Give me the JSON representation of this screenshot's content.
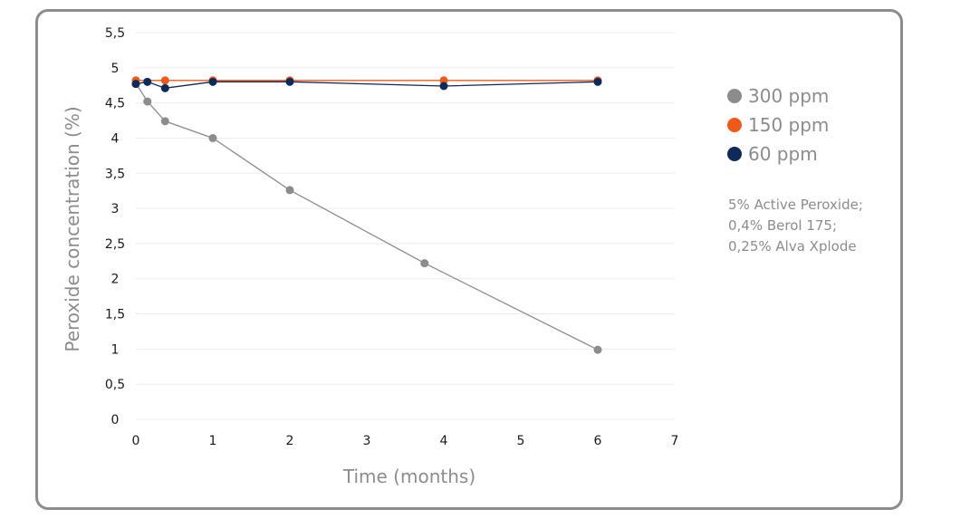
{
  "chart_data": {
    "type": "line",
    "xlabel": "Time (months)",
    "ylabel": "Peroxide concentration (%)",
    "xlim": [
      0,
      7
    ],
    "ylim": [
      0,
      5.5
    ],
    "x_ticks": [
      "0",
      "1",
      "2",
      "3",
      "4",
      "5",
      "6",
      "7"
    ],
    "y_ticks": [
      "0",
      "0,5",
      "1",
      "1,5",
      "2",
      "2,5",
      "3",
      "3,5",
      "4",
      "4,5",
      "5",
      "5,5"
    ],
    "grid": "horizontal",
    "legend_position": "right",
    "series": [
      {
        "name": "300 ppm",
        "color": "#8c8c8c",
        "points": [
          [
            0,
            4.78
          ],
          [
            0.15,
            4.52
          ],
          [
            0.38,
            4.24
          ],
          [
            1.0,
            4.0
          ],
          [
            2.0,
            3.26
          ],
          [
            3.75,
            2.22
          ],
          [
            6.0,
            0.99
          ]
        ]
      },
      {
        "name": "150 ppm",
        "color": "#ef5a1a",
        "points": [
          [
            0,
            4.82
          ],
          [
            0.38,
            4.82
          ],
          [
            1.0,
            4.82
          ],
          [
            2.0,
            4.82
          ],
          [
            4.0,
            4.82
          ],
          [
            6.0,
            4.82
          ]
        ]
      },
      {
        "name": "60 ppm",
        "color": "#0e2a5a",
        "points": [
          [
            0,
            4.77
          ],
          [
            0.15,
            4.8
          ],
          [
            0.38,
            4.71
          ],
          [
            1.0,
            4.8
          ],
          [
            2.0,
            4.8
          ],
          [
            4.0,
            4.74
          ],
          [
            6.0,
            4.8
          ]
        ]
      }
    ]
  },
  "note": [
    "5% Active Peroxide;",
    "0,4% Berol 175;",
    "0,25% Alva Xplode"
  ]
}
